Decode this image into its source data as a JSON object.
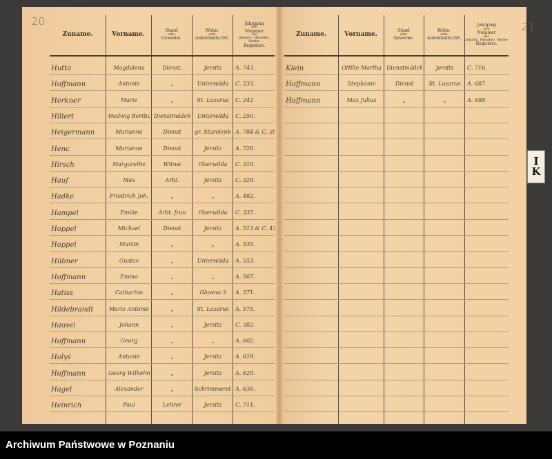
{
  "left_page": {
    "page_number": "20",
    "headers": {
      "surname": "Zuname.",
      "first_name": "Vorname.",
      "status": [
        "Stand",
        "oder",
        "Gewerbe."
      ],
      "residence": [
        "Wohn-",
        "oder",
        "Aufenthalts-Ort."
      ],
      "register": [
        "Jahrgang",
        "und",
        "Nummer",
        "des",
        "Geburts-, Heiraths-, Sterbe-",
        "Registers."
      ]
    },
    "rows": [
      [
        "Hutta",
        "Magdalena",
        "Dienst.",
        "Jersitz",
        "A. 743."
      ],
      [
        "Hoffmann",
        "Antonie",
        "„",
        "Unterwilda",
        "C. 233."
      ],
      [
        "Herkner",
        "Marie",
        "„",
        "St. Lazarus",
        "C. 242"
      ],
      [
        "Hillert",
        "Hedwig Bertha",
        "Dienstmädchen",
        "Unterwilda",
        "C. 250."
      ],
      [
        "Heigermann",
        "Marianne",
        "Dienst",
        "gr. Starolenka",
        "A. 784 & C. 399."
      ],
      [
        "Henc",
        "Marianne",
        "Dienst",
        "Jersitz",
        "A. 726."
      ],
      [
        "Hirsch",
        "Margarethe",
        "Witwe",
        "Oberwilda",
        "C. 310."
      ],
      [
        "Hauf",
        "Max",
        "Arbt.",
        "Jersitz",
        "C. 329."
      ],
      [
        "Hadke",
        "Friedrich Joh.",
        "„",
        "„",
        "A. 482."
      ],
      [
        "Hampel",
        "Emilie",
        "Arbt. frau",
        "Oberwilda",
        "C. 335."
      ],
      [
        "Hoppel",
        "Michael",
        "Dienst",
        "Jersitz",
        "A. 513 & C. 419."
      ],
      [
        "Hoppel",
        "Martin",
        "„",
        "„",
        "A. 535."
      ],
      [
        "Hübner",
        "Gustav",
        "„",
        "Unterwilda",
        "A. 553."
      ],
      [
        "Hoffmann",
        "Emma",
        "„",
        "„",
        "A. 567."
      ],
      [
        "Hatiss",
        "Catharina",
        "„",
        "Glowno 3",
        "A. 571."
      ],
      [
        "Hildebrandt",
        "Marie Antonie",
        "„",
        "St. Lazarus",
        "A. 575."
      ],
      [
        "Hausel",
        "Johann",
        "„",
        "Jersitz",
        "C. 382."
      ],
      [
        "Hoffmann",
        "Georg",
        "„",
        "„",
        "A. 602."
      ],
      [
        "Holyś",
        "Antonie",
        "„",
        "Jersitz",
        "A. 619."
      ],
      [
        "Hoffmann",
        "Georg Wilhelm",
        "„",
        "Jersitz",
        "A. 629."
      ],
      [
        "Hagel",
        "Alexander",
        "„",
        "Schrimmerst.",
        "A. 636."
      ],
      [
        "Heinrich",
        "Paul",
        "Lehrer",
        "Jersitz",
        "C. 711."
      ]
    ]
  },
  "right_page": {
    "page_number": "21",
    "headers": {
      "surname": "Zuname.",
      "first_name": "Vorname.",
      "status": [
        "Stand",
        "oder",
        "Gewerbe."
      ],
      "residence": [
        "Wohn-",
        "oder",
        "Aufenthalts-Ort."
      ],
      "register": [
        "Jahrgang",
        "und",
        "Nummer",
        "des",
        "Geburts-, Heiraths-, Sterbe-",
        "Registers."
      ]
    },
    "rows": [
      [
        "Klein",
        "Ottilie Martha",
        "Dienstmädchen",
        "Jersitz",
        "C. 716."
      ],
      [
        "Hoffmann",
        "Stephanie",
        "Dienst",
        "St. Lazarus",
        "A. 687."
      ],
      [
        "Hoffmann",
        "Max Julius",
        "„",
        "„",
        "A. 688."
      ]
    ]
  },
  "index_tab": [
    "I",
    "K"
  ],
  "footer": {
    "text": "Archiwum Państwowe w Poznaniu"
  }
}
